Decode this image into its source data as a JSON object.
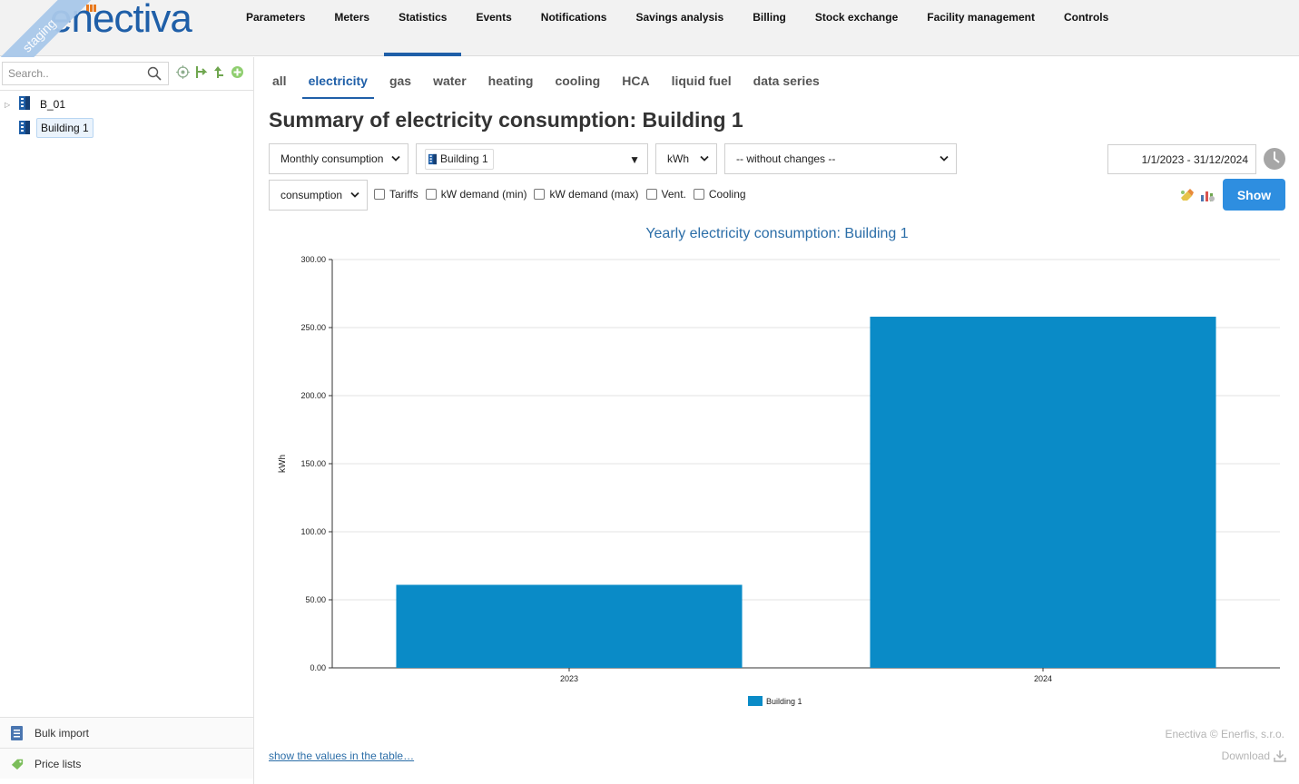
{
  "app": {
    "logo": "enectiva",
    "env_badge": "staging"
  },
  "nav": {
    "items": [
      {
        "label": "Parameters",
        "active": false
      },
      {
        "label": "Meters",
        "active": false
      },
      {
        "label": "Statistics",
        "active": true
      },
      {
        "label": "Events",
        "active": false
      },
      {
        "label": "Notifications",
        "active": false
      },
      {
        "label": "Savings analysis",
        "active": false
      },
      {
        "label": "Billing",
        "active": false
      },
      {
        "label": "Stock exchange",
        "active": false
      },
      {
        "label": "Facility management",
        "active": false
      },
      {
        "label": "Controls",
        "active": false
      }
    ]
  },
  "sidebar": {
    "search": {
      "placeholder": "Search..",
      "value": "",
      "icon": "search-icon"
    },
    "tools": [
      "target-icon",
      "tree-expand-icon",
      "tree-up-icon",
      "add-icon"
    ],
    "tree": [
      {
        "label": "B_01",
        "icon": "building-icon",
        "expandable": true,
        "selected": false
      },
      {
        "label": "Building 1",
        "icon": "building-icon",
        "expandable": false,
        "selected": true
      }
    ],
    "bottom": [
      {
        "label": "Bulk import",
        "icon": "import-icon"
      },
      {
        "label": "Price lists",
        "icon": "price-tag-icon"
      }
    ]
  },
  "tabs": [
    {
      "label": "all",
      "active": false
    },
    {
      "label": "electricity",
      "active": true
    },
    {
      "label": "gas",
      "active": false
    },
    {
      "label": "water",
      "active": false
    },
    {
      "label": "heating",
      "active": false
    },
    {
      "label": "cooling",
      "active": false
    },
    {
      "label": "HCA",
      "active": false
    },
    {
      "label": "liquid fuel",
      "active": false
    },
    {
      "label": "data series",
      "active": false
    }
  ],
  "page_title": "Summary of electricity consumption: Building 1",
  "controls": {
    "aggregation": "Monthly consumption",
    "entity": "Building 1",
    "unit": "kWh",
    "modification": "-- without changes --",
    "metric": "consumption",
    "date_range": "1/1/2023 - 31/12/2024",
    "checkboxes": [
      {
        "label": "Tariffs",
        "checked": false
      },
      {
        "label": "kW demand (min)",
        "checked": false
      },
      {
        "label": "kW demand (max)",
        "checked": false
      },
      {
        "label": "Vent.",
        "checked": false
      },
      {
        "label": "Cooling",
        "checked": false
      }
    ],
    "show_label": "Show"
  },
  "chart_data": {
    "type": "bar",
    "title": "Yearly electricity consumption: Building 1",
    "categories": [
      "2023",
      "2024"
    ],
    "series": [
      {
        "name": "Building 1",
        "values": [
          61,
          258
        ],
        "color": "#0a8bc7"
      }
    ],
    "xlabel": "",
    "ylabel": "kWh",
    "ylim": [
      0,
      300
    ],
    "yticks": [
      "0.00",
      "50.00",
      "100.00",
      "150.00",
      "200.00",
      "250.00",
      "300.00"
    ],
    "grid": true,
    "legend": "bottom-center"
  },
  "footer": {
    "table_link": "show the values in the table…",
    "copyright": "Enectiva © Enerfis, s.r.o.",
    "download": "Download"
  }
}
